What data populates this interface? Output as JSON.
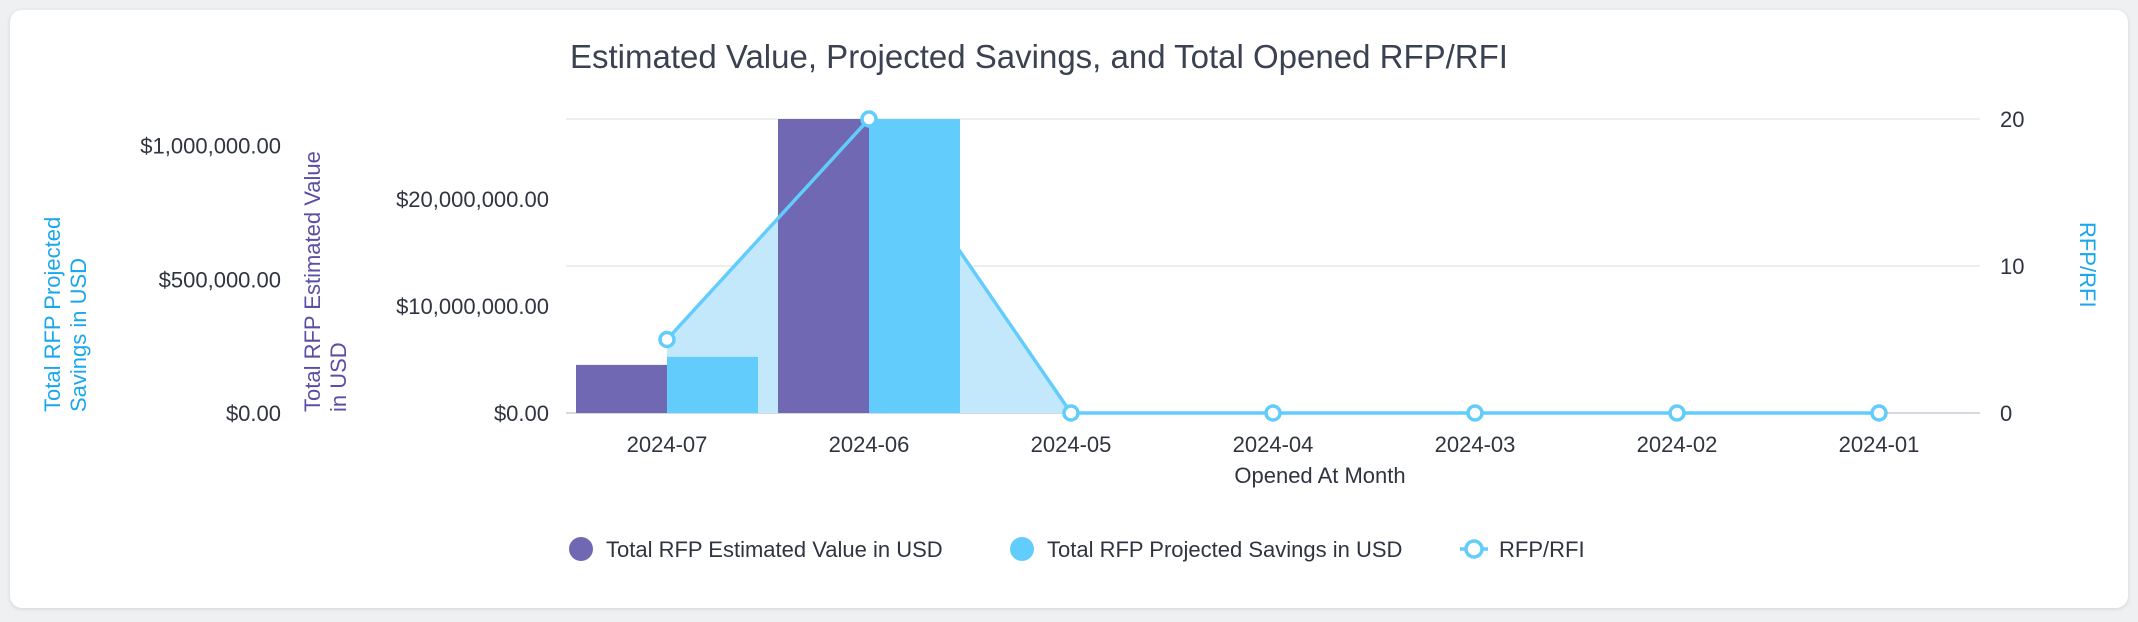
{
  "chart_data": {
    "type": "bar",
    "title": "Estimated Value, Projected Savings, and Total Opened RFP/RFI",
    "xlabel": "Opened At Month",
    "categories": [
      "2024-07",
      "2024-06",
      "2024-05",
      "2024-04",
      "2024-03",
      "2024-02",
      "2024-01"
    ],
    "series": [
      {
        "name": "Total RFP Estimated Value in USD",
        "type": "bar",
        "axis": "y_estimated",
        "color": "#7068b3",
        "values": [
          4500000,
          27500000,
          0,
          0,
          0,
          0,
          0
        ]
      },
      {
        "name": "Total RFP Projected Savings in USD",
        "type": "bar",
        "axis": "y_savings",
        "color": "#62cdfd",
        "values": [
          210000,
          1100000,
          0,
          0,
          0,
          0,
          0
        ]
      },
      {
        "name": "RFP/RFI",
        "type": "area-line",
        "axis": "y_count",
        "color": "#62cdfd",
        "values": [
          5,
          20,
          0,
          0,
          0,
          0,
          0
        ]
      }
    ],
    "axes": {
      "y_savings": {
        "label": "Total RFP Projected Savings in USD",
        "color": "#1aa7ee",
        "ylim": [
          0,
          1100000
        ],
        "ticks": [
          {
            "value": 0,
            "label": "$0.00"
          },
          {
            "value": 500000,
            "label": "$500,000.00"
          },
          {
            "value": 1000000,
            "label": "$1,000,000.00"
          }
        ]
      },
      "y_estimated": {
        "label": "Total RFP Estimated Value in USD",
        "color": "#5a4fa5",
        "ylim": [
          0,
          27500000
        ],
        "ticks": [
          {
            "value": 0,
            "label": "$0.00"
          },
          {
            "value": 10000000,
            "label": "$10,000,000.00"
          },
          {
            "value": 20000000,
            "label": "$20,000,000.00"
          }
        ]
      },
      "y_count": {
        "label": "RFP/RFI",
        "color": "#1aa7ee",
        "ylim": [
          0,
          20
        ],
        "ticks": [
          {
            "value": 0,
            "label": "0"
          },
          {
            "value": 10,
            "label": "10"
          },
          {
            "value": 20,
            "label": "20"
          }
        ]
      }
    },
    "grid": true,
    "legend_position": "bottom"
  }
}
